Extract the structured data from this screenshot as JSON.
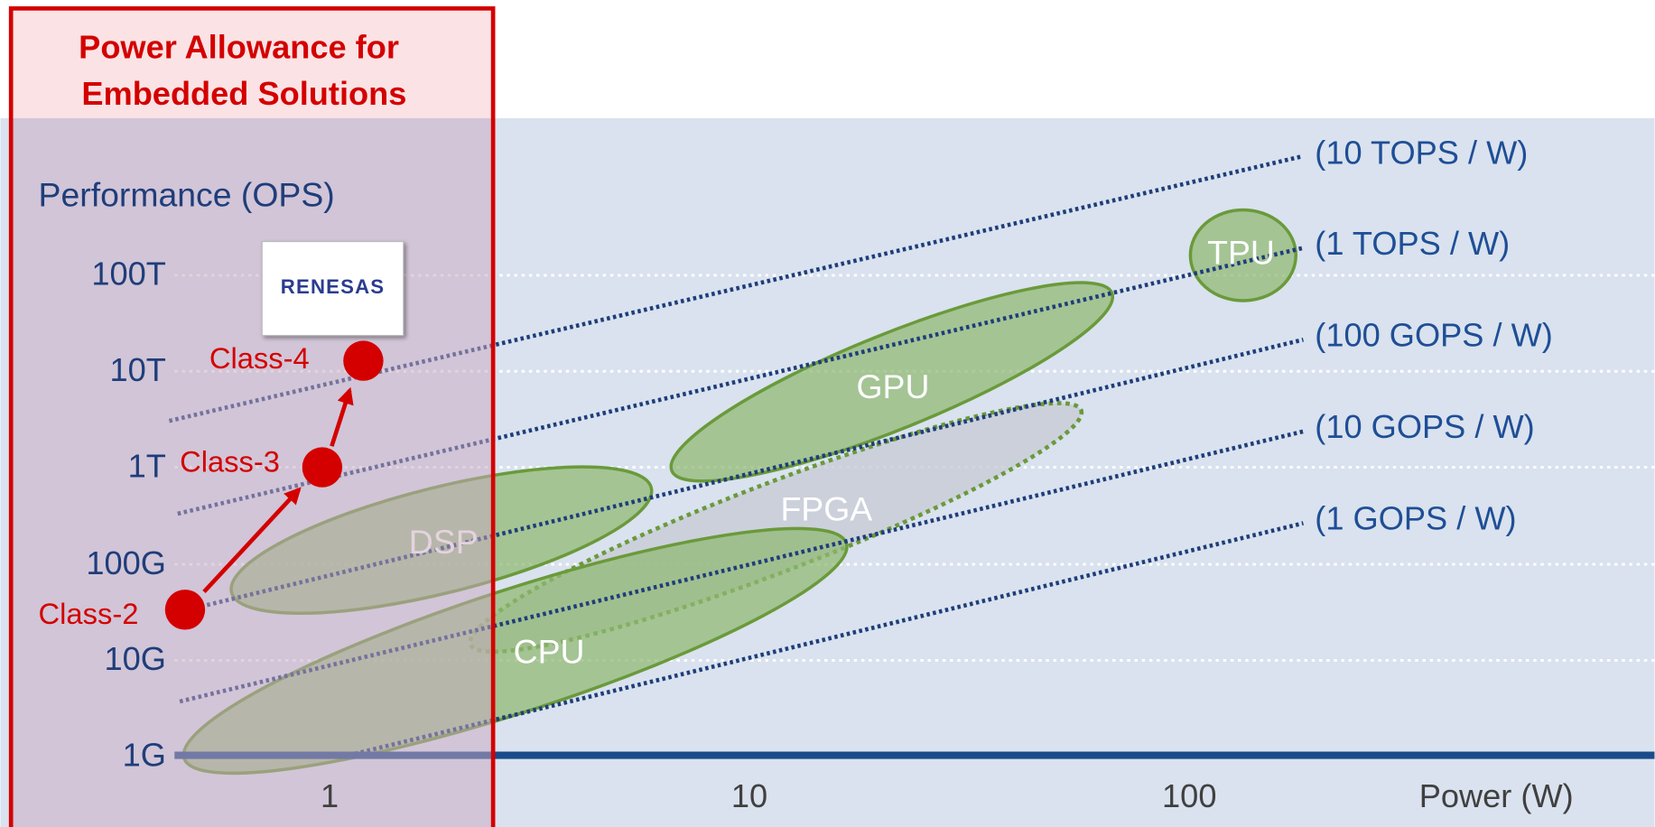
{
  "box_title": [
    "Power Allowance for",
    "Embedded Solutions"
  ],
  "y_axis": {
    "label": "Performance (OPS)",
    "ticks": [
      "100T",
      "10T",
      "1T",
      "100G",
      "10G",
      "1G"
    ]
  },
  "x_axis": {
    "label": "Power (W)",
    "ticks": [
      "1",
      "10",
      "100"
    ]
  },
  "efficiency_lines": [
    "(10 TOPS / W)",
    "(1 TOPS / W)",
    "(100 GOPS / W)",
    "(10 GOPS / W)",
    "(1 GOPS / W)"
  ],
  "devices": [
    "GPU",
    "TPU",
    "FPGA",
    "DSP",
    "CPU"
  ],
  "classes": [
    "Class-2",
    "Class-3",
    "Class-4"
  ],
  "logo": "RENESAS"
}
